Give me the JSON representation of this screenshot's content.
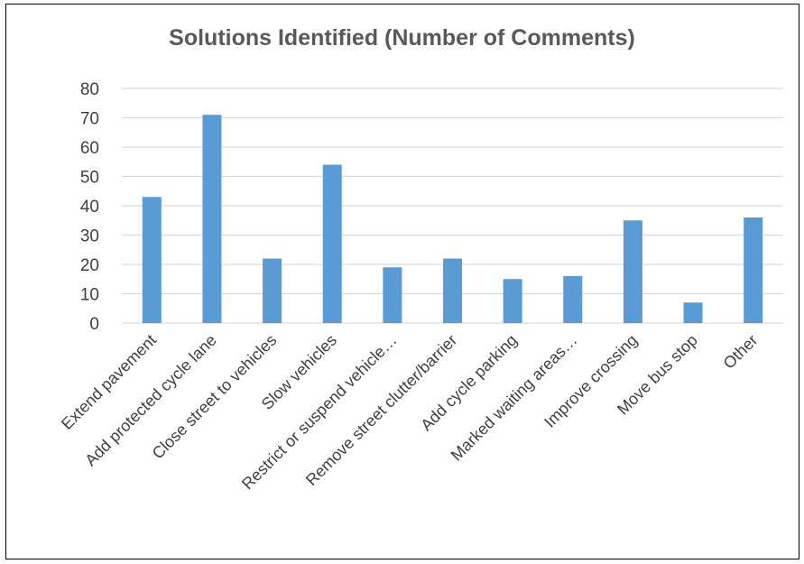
{
  "chart_data": {
    "type": "bar",
    "title": "Solutions Identified (Number of Comments)",
    "xlabel": "",
    "ylabel": "",
    "ylim": [
      0,
      80
    ],
    "yticks": [
      0,
      10,
      20,
      30,
      40,
      50,
      60,
      70,
      80
    ],
    "grid": true,
    "legend": "none",
    "bar_color": "#5B9BD5",
    "categories": [
      "Extend pavement",
      "Add protected cycle lane",
      "Close street to vehicles",
      "Slow vehicles",
      "Restrict or suspend vehicle…",
      "Remove street clutter/barrier",
      "Add cycle parking",
      "Marked waiting areas…",
      "Improve crossing",
      "Move bus stop",
      "Other"
    ],
    "values": [
      43,
      71,
      22,
      54,
      19,
      22,
      15,
      16,
      35,
      7,
      36
    ]
  }
}
